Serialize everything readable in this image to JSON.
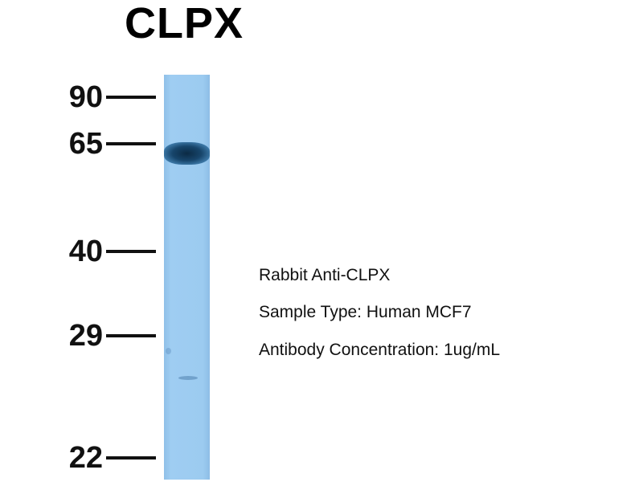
{
  "title": "CLPX",
  "markers": [
    {
      "label": "90"
    },
    {
      "label": "65"
    },
    {
      "label": "40"
    },
    {
      "label": "29"
    },
    {
      "label": "22"
    }
  ],
  "info": {
    "antibody": "Rabbit Anti-CLPX",
    "sample": "Sample Type: Human MCF7",
    "concentration": "Antibody Concentration: 1ug/mL"
  },
  "colors": {
    "lane": "#9ccbf0",
    "band": "#0b2a44"
  }
}
